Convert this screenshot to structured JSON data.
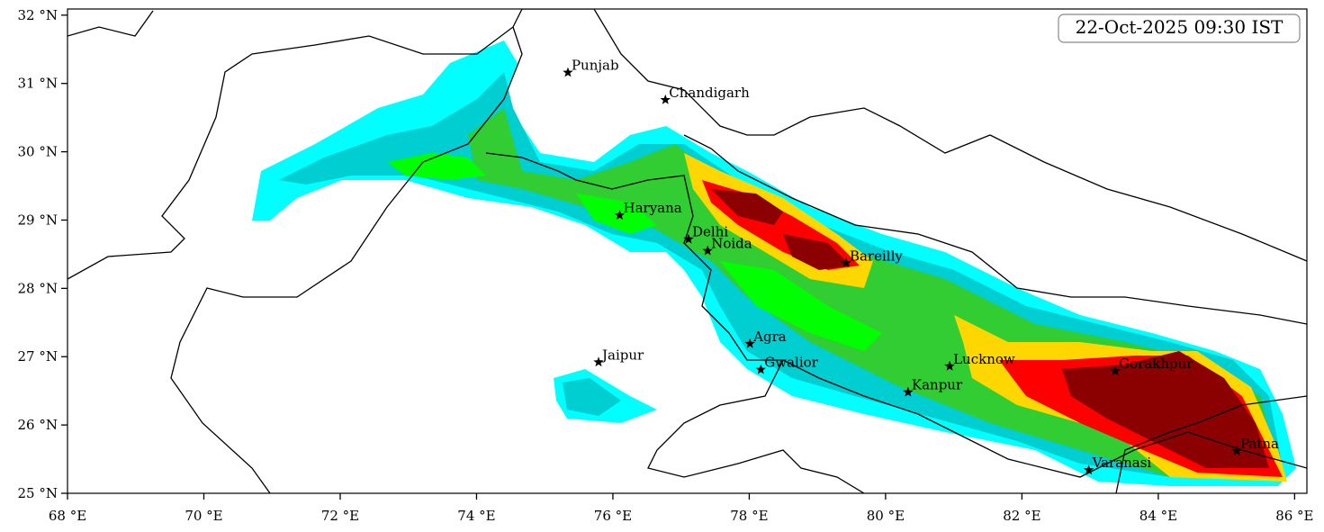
{
  "map": {
    "timestamp": "22-Oct-2025 09:30 IST",
    "xlim": [
      68,
      86.18
    ],
    "ylim": [
      25,
      32.09
    ],
    "xticks": [
      {
        "value": 68,
        "label": "68 °E"
      },
      {
        "value": 70,
        "label": "70 °E"
      },
      {
        "value": 72,
        "label": "72 °E"
      },
      {
        "value": 74,
        "label": "74 °E"
      },
      {
        "value": 76,
        "label": "76 °E"
      },
      {
        "value": 78,
        "label": "78 °E"
      },
      {
        "value": 80,
        "label": "80 °E"
      },
      {
        "value": 82,
        "label": "82 °E"
      },
      {
        "value": 84,
        "label": "84 °E"
      },
      {
        "value": 86,
        "label": "86 °E"
      }
    ],
    "yticks": [
      {
        "value": 25,
        "label": "25 °N"
      },
      {
        "value": 26,
        "label": "26 °N"
      },
      {
        "value": 27,
        "label": "27 °N"
      },
      {
        "value": 28,
        "label": "28 °N"
      },
      {
        "value": 29,
        "label": "29 °N"
      },
      {
        "value": 30,
        "label": "30 °N"
      },
      {
        "value": 31,
        "label": "31 °N"
      },
      {
        "value": 32,
        "label": "32 °N"
      }
    ],
    "cities": [
      {
        "name": "Punjab",
        "lon": 75.34,
        "lat": 31.16
      },
      {
        "name": "Chandigarh",
        "lon": 76.77,
        "lat": 30.76
      },
      {
        "name": "Haryana",
        "lon": 76.1,
        "lat": 29.07
      },
      {
        "name": "Delhi",
        "lon": 77.11,
        "lat": 28.72
      },
      {
        "name": "Noida",
        "lon": 77.39,
        "lat": 28.55
      },
      {
        "name": "Bareilly",
        "lon": 79.42,
        "lat": 28.37
      },
      {
        "name": "Agra",
        "lon": 78.01,
        "lat": 27.19
      },
      {
        "name": "Jaipur",
        "lon": 75.79,
        "lat": 26.92
      },
      {
        "name": "Gwalior",
        "lon": 78.17,
        "lat": 26.81
      },
      {
        "name": "Lucknow",
        "lon": 80.94,
        "lat": 26.86
      },
      {
        "name": "Kanpur",
        "lon": 80.33,
        "lat": 26.48
      },
      {
        "name": "Gorakhpur",
        "lon": 83.37,
        "lat": 26.79
      },
      {
        "name": "Patna",
        "lon": 85.15,
        "lat": 25.62
      },
      {
        "name": "Varanasi",
        "lon": 82.98,
        "lat": 25.34
      }
    ]
  }
}
